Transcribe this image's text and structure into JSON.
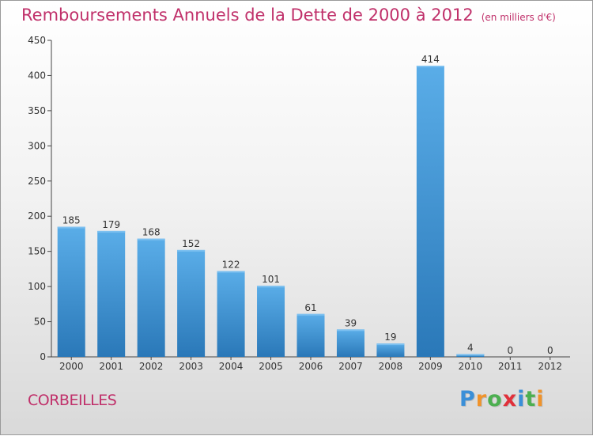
{
  "title": "Remboursements Annuels de la Dette de 2000 à 2012",
  "subtitle": "(en milliers d'€)",
  "commune": "CORBEILLES",
  "logo": {
    "letters": [
      "P",
      "r",
      "o",
      "x",
      "i",
      "t",
      "i"
    ],
    "colors": [
      "#3a8fd8",
      "#f0932b",
      "#4caf50",
      "#e0303a",
      "#3a8fd8",
      "#4caf50",
      "#f0932b"
    ]
  },
  "colors": {
    "title": "#c0306a",
    "bar_top": "#5aade8",
    "bar_bottom": "#2a78b8",
    "axis": "#444444"
  },
  "chart_data": {
    "type": "bar",
    "categories": [
      "2000",
      "2001",
      "2002",
      "2003",
      "2004",
      "2005",
      "2006",
      "2007",
      "2008",
      "2009",
      "2010",
      "2011",
      "2012"
    ],
    "values": [
      185,
      179,
      168,
      152,
      122,
      101,
      61,
      39,
      19,
      414,
      4,
      0,
      0
    ],
    "value_labels": [
      "185",
      "179",
      "168",
      "152",
      "122",
      "101",
      "61",
      "39",
      "19",
      "414",
      "4",
      "0",
      "0"
    ],
    "yticks": [
      0,
      50,
      100,
      150,
      200,
      250,
      300,
      350,
      400,
      450
    ],
    "ylim": [
      0,
      450
    ],
    "xlabel": "",
    "ylabel": "",
    "grid": false,
    "legend": "none"
  }
}
